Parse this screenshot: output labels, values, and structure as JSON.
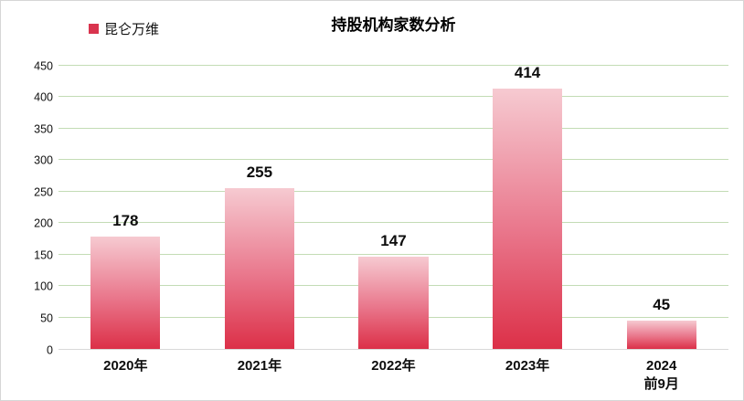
{
  "chart_data": {
    "type": "bar",
    "title": "持股机构家数分析",
    "legend": {
      "label": "昆仑万维",
      "marker_color": "#d9344e",
      "position": "top-left"
    },
    "categories": [
      "2020年",
      "2021年",
      "2022年",
      "2023年",
      "2024\n前9月"
    ],
    "values": [
      178,
      255,
      147,
      414,
      45
    ],
    "series": [
      {
        "name": "昆仑万维",
        "values": [
          178,
          255,
          147,
          414,
          45
        ]
      }
    ],
    "xlabel": "",
    "ylabel": "",
    "ylim": [
      0,
      450
    ],
    "y_ticks": [
      0,
      50,
      100,
      150,
      200,
      250,
      300,
      350,
      400,
      450
    ],
    "grid": true,
    "colors": {
      "bar_gradient_top": "#f6cad1",
      "bar_gradient_mid": "#e9768b",
      "bar_gradient_bottom": "#dc3048",
      "gridline": "#c3dcb5",
      "axis_line": "#d9d9d9",
      "label_text": "#0d0d0d"
    }
  }
}
